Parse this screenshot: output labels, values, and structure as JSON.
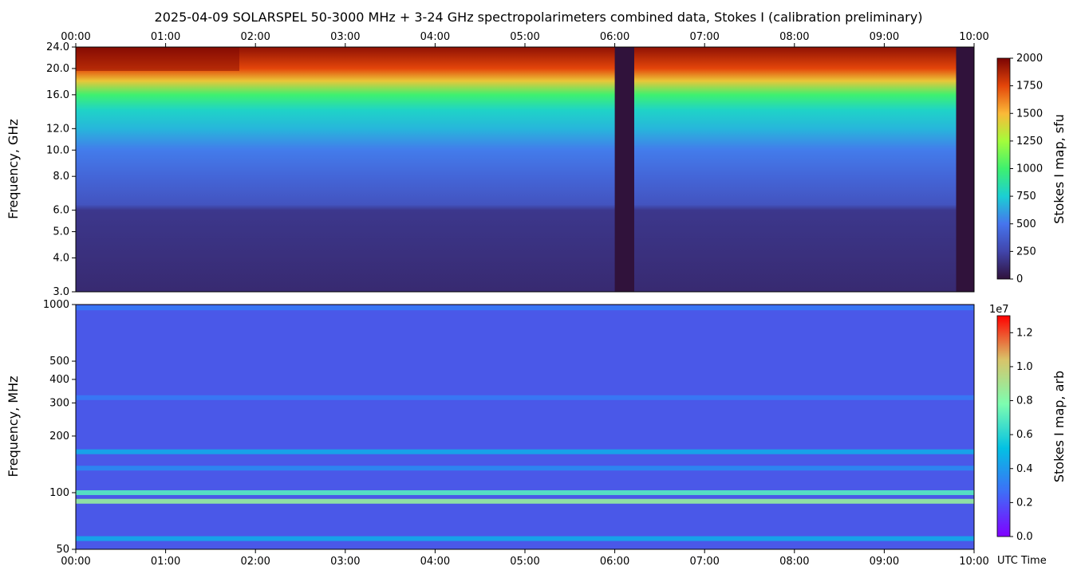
{
  "title": "2025-04-09  SOLARSPEL  50-3000 MHz  +  3-24 GHz  spectropolarimeters combined data,  Stokes I  (calibration preliminary)",
  "time_ticks": [
    "00:00",
    "01:00",
    "02:00",
    "03:00",
    "04:00",
    "05:00",
    "06:00",
    "07:00",
    "08:00",
    "09:00",
    "10:00"
  ],
  "x_axis_label": "UTC Time",
  "colors": {
    "background_dark": "#30123b",
    "low_band_base": "#4a58e8",
    "rfi_red": "#e8241a",
    "rfi_cyan": "#2ee0d0"
  },
  "chart_data": [
    {
      "type": "heatmap",
      "panel": "top",
      "ylabel": "Frequency, GHz",
      "yscale": "log",
      "ylim": [
        3.0,
        24.0
      ],
      "yticks": [
        "3.0",
        "4.0",
        "5.0",
        "6.0",
        "8.0",
        "10.0",
        "12.0",
        "16.0",
        "20.0",
        "24.0"
      ],
      "xlim": [
        "00:00",
        "10:00"
      ],
      "colorbar": {
        "label": "Stokes I map, sfu",
        "range": [
          0,
          2000
        ],
        "ticks": [
          "0",
          "250",
          "500",
          "750",
          "1000",
          "1250",
          "1500",
          "1750",
          "2000"
        ],
        "colormap": "turbo"
      },
      "spectrum_profile": [
        {
          "freq_ghz": 3.0,
          "sfu": 120
        },
        {
          "freq_ghz": 6.0,
          "sfu": 180
        },
        {
          "freq_ghz": 6.3,
          "sfu": 330
        },
        {
          "freq_ghz": 8.0,
          "sfu": 420
        },
        {
          "freq_ghz": 10.0,
          "sfu": 520
        },
        {
          "freq_ghz": 12.0,
          "sfu": 680
        },
        {
          "freq_ghz": 14.0,
          "sfu": 780
        },
        {
          "freq_ghz": 16.0,
          "sfu": 1000
        },
        {
          "freq_ghz": 18.0,
          "sfu": 1450
        },
        {
          "freq_ghz": 20.0,
          "sfu": 1750
        },
        {
          "freq_ghz": 24.0,
          "sfu": 1950
        }
      ],
      "data_gaps": [
        {
          "start": "06:00",
          "end": "06:13"
        },
        {
          "start": "09:48",
          "end": "10:03"
        }
      ]
    },
    {
      "type": "heatmap",
      "panel": "bottom",
      "ylabel": "Frequency, MHz",
      "yscale": "log",
      "ylim": [
        50,
        1000
      ],
      "yticks": [
        "50",
        "100",
        "200",
        "300",
        "400",
        "500",
        "1000"
      ],
      "xlim": [
        "00:00",
        "10:00"
      ],
      "colorbar": {
        "label": "Stokes I map, arb",
        "range": [
          0.0,
          1.3
        ],
        "ticks": [
          "0.0",
          "0.2",
          "0.4",
          "0.6",
          "0.8",
          "1.0",
          "1.2"
        ],
        "offset_text": "1e7",
        "colormap": "rainbow"
      },
      "bright_bands": [
        {
          "freq_mhz": 90,
          "level": 0.85
        },
        {
          "freq_mhz": 100,
          "level": 0.7
        },
        {
          "freq_mhz": 57,
          "level": 0.45
        },
        {
          "freq_mhz": 165,
          "level": 0.45
        },
        {
          "freq_mhz": 135,
          "level": 0.35
        },
        {
          "freq_mhz": 320,
          "level": 0.3
        },
        {
          "freq_mhz": 960,
          "level": 0.3
        }
      ]
    }
  ]
}
